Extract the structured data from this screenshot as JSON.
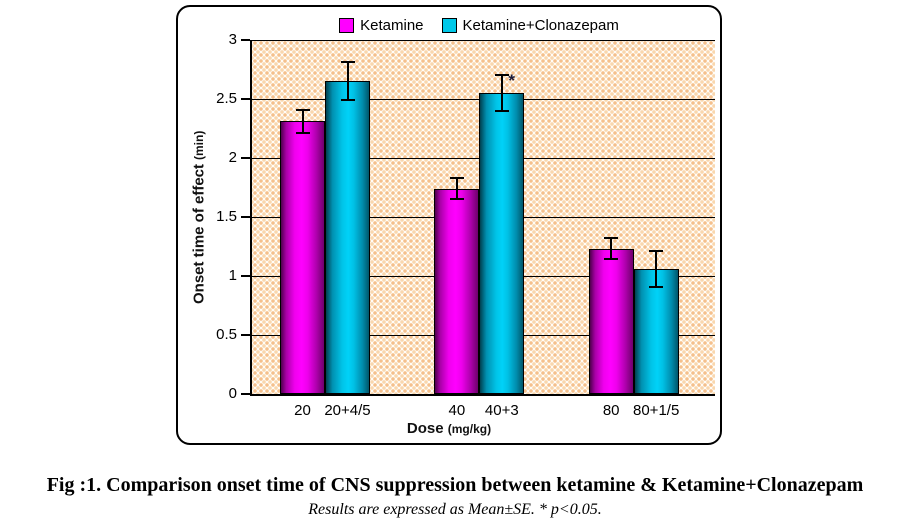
{
  "figure": {
    "caption": "Fig :1. Comparison onset time of CNS suppression between ketamine & Ketamine+Clonazepam",
    "subcaption": "Results are expressed as Mean±SE. * p<0.05."
  },
  "chart_data": {
    "type": "bar",
    "title": "",
    "xlabel": "Dose",
    "xlabel_unit": "(mg/kg)",
    "ylabel": "Onset time of effect",
    "ylabel_unit": "(min)",
    "ylim": [
      0,
      3
    ],
    "yticks": [
      0,
      0.5,
      1,
      1.5,
      2,
      2.5,
      3
    ],
    "grid": true,
    "legend_position": "top-center",
    "plot_background_colors": [
      "#FFFDF8",
      "#F5C08C"
    ],
    "series": [
      {
        "name": "Ketamine",
        "color": "#FF00FF",
        "bar_labels": [
          "20",
          "40",
          "80"
        ],
        "values": [
          2.31,
          1.74,
          1.23
        ],
        "errors": [
          0.1,
          0.09,
          0.09
        ]
      },
      {
        "name": "Ketamine+Clonazepam",
        "color": "#00C8E8",
        "bar_labels": [
          "20+4/5",
          "40+3",
          "80+1/5"
        ],
        "values": [
          2.65,
          2.55,
          1.06
        ],
        "errors": [
          0.16,
          0.15,
          0.15
        ]
      }
    ],
    "annotations": [
      {
        "series_index": 1,
        "group_index": 1,
        "text": "*"
      }
    ]
  }
}
